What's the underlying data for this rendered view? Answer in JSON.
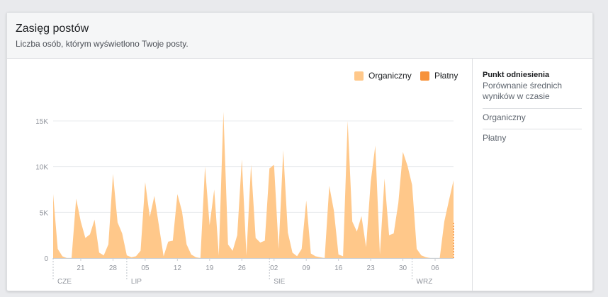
{
  "header": {
    "title": "Zasięg postów",
    "subtitle": "Liczba osób, którym wyświetlono Twoje posty."
  },
  "legend": [
    {
      "label": "Organiczny",
      "color": "#ffc88a"
    },
    {
      "label": "Płatny",
      "color": "#f7923a"
    }
  ],
  "sidebar": {
    "heading": "Punkt odniesienia",
    "items": [
      {
        "label": "Porównanie średnich wyników w czasie"
      },
      {
        "label": "Organiczny"
      },
      {
        "label": "Płatny"
      }
    ]
  },
  "chart_data": {
    "type": "area",
    "title": "",
    "xlabel": "",
    "ylabel": "",
    "ylim": [
      0,
      16000
    ],
    "yticks": [
      0,
      5000,
      10000,
      15000
    ],
    "ytick_labels": [
      "0",
      "5K",
      "10K",
      "15K"
    ],
    "x_start": "2019-06-15",
    "x_end": "2019-09-10",
    "xtick_dates": [
      "2019-06-21",
      "2019-06-28",
      "2019-07-05",
      "2019-07-12",
      "2019-07-19",
      "2019-07-26",
      "2019-08-02",
      "2019-08-09",
      "2019-08-16",
      "2019-08-23",
      "2019-08-30",
      "2019-09-06"
    ],
    "xtick_labels": [
      "21",
      "28",
      "05",
      "12",
      "19",
      "26",
      "02",
      "09",
      "16",
      "23",
      "30",
      "06"
    ],
    "month_dates": [
      "2019-06-15",
      "2019-07-01",
      "2019-08-01",
      "2019-09-01"
    ],
    "month_labels": [
      "CZE",
      "LIP",
      "SIE",
      "WRZ"
    ],
    "series": [
      {
        "name": "Organiczny",
        "color": "#ffc88a",
        "values": [
          [
            "2019-06-15",
            7000
          ],
          [
            "2019-06-16",
            1000
          ],
          [
            "2019-06-17",
            200
          ],
          [
            "2019-06-18",
            0
          ],
          [
            "2019-06-19",
            0
          ],
          [
            "2019-06-20",
            6500
          ],
          [
            "2019-06-21",
            4000
          ],
          [
            "2019-06-22",
            2200
          ],
          [
            "2019-06-23",
            2600
          ],
          [
            "2019-06-24",
            4200
          ],
          [
            "2019-06-25",
            600
          ],
          [
            "2019-06-26",
            300
          ],
          [
            "2019-06-27",
            1500
          ],
          [
            "2019-06-28",
            9200
          ],
          [
            "2019-06-29",
            3900
          ],
          [
            "2019-06-30",
            2700
          ],
          [
            "2019-07-01",
            300
          ],
          [
            "2019-07-02",
            100
          ],
          [
            "2019-07-03",
            200
          ],
          [
            "2019-07-04",
            800
          ],
          [
            "2019-07-05",
            8300
          ],
          [
            "2019-07-06",
            4500
          ],
          [
            "2019-07-07",
            6800
          ],
          [
            "2019-07-08",
            3500
          ],
          [
            "2019-07-09",
            200
          ],
          [
            "2019-07-10",
            1800
          ],
          [
            "2019-07-11",
            1900
          ],
          [
            "2019-07-12",
            7000
          ],
          [
            "2019-07-13",
            5100
          ],
          [
            "2019-07-14",
            1500
          ],
          [
            "2019-07-15",
            400
          ],
          [
            "2019-07-16",
            100
          ],
          [
            "2019-07-17",
            0
          ],
          [
            "2019-07-18",
            10000
          ],
          [
            "2019-07-19",
            3600
          ],
          [
            "2019-07-20",
            7500
          ],
          [
            "2019-07-21",
            300
          ],
          [
            "2019-07-22",
            16000
          ],
          [
            "2019-07-23",
            1500
          ],
          [
            "2019-07-24",
            800
          ],
          [
            "2019-07-25",
            2500
          ],
          [
            "2019-07-26",
            10800
          ],
          [
            "2019-07-27",
            300
          ],
          [
            "2019-07-28",
            10200
          ],
          [
            "2019-07-29",
            2200
          ],
          [
            "2019-07-30",
            1700
          ],
          [
            "2019-07-31",
            1900
          ],
          [
            "2019-08-01",
            9800
          ],
          [
            "2019-08-02",
            10200
          ],
          [
            "2019-08-03",
            1000
          ],
          [
            "2019-08-04",
            11800
          ],
          [
            "2019-08-05",
            2800
          ],
          [
            "2019-08-06",
            600
          ],
          [
            "2019-08-07",
            200
          ],
          [
            "2019-08-08",
            1000
          ],
          [
            "2019-08-09",
            6300
          ],
          [
            "2019-08-10",
            500
          ],
          [
            "2019-08-11",
            200
          ],
          [
            "2019-08-12",
            100
          ],
          [
            "2019-08-13",
            0
          ],
          [
            "2019-08-14",
            7900
          ],
          [
            "2019-08-15",
            5200
          ],
          [
            "2019-08-16",
            400
          ],
          [
            "2019-08-17",
            200
          ],
          [
            "2019-08-18",
            15000
          ],
          [
            "2019-08-19",
            4000
          ],
          [
            "2019-08-20",
            2900
          ],
          [
            "2019-08-21",
            4600
          ],
          [
            "2019-08-22",
            1200
          ],
          [
            "2019-08-23",
            8300
          ],
          [
            "2019-08-24",
            12300
          ],
          [
            "2019-08-25",
            400
          ],
          [
            "2019-08-26",
            8700
          ],
          [
            "2019-08-27",
            2500
          ],
          [
            "2019-08-28",
            2700
          ],
          [
            "2019-08-29",
            6000
          ],
          [
            "2019-08-30",
            11600
          ],
          [
            "2019-08-31",
            10100
          ],
          [
            "2019-09-01",
            8000
          ],
          [
            "2019-09-02",
            1000
          ],
          [
            "2019-09-03",
            300
          ],
          [
            "2019-09-04",
            100
          ],
          [
            "2019-09-05",
            0
          ],
          [
            "2019-09-06",
            0
          ],
          [
            "2019-09-07",
            0
          ],
          [
            "2019-09-08",
            4000
          ],
          [
            "2019-09-09",
            6300
          ],
          [
            "2019-09-10",
            8500
          ]
        ]
      },
      {
        "name": "Płatny",
        "color": "#f7923a",
        "values": []
      }
    ],
    "grid": true,
    "legend_position": "top-right"
  }
}
